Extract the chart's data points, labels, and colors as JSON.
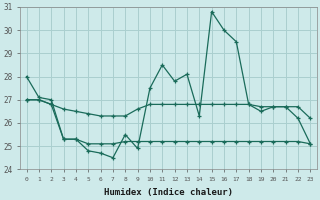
{
  "title": "",
  "xlabel": "Humidex (Indice chaleur)",
  "ylabel": "",
  "background_color": "#ceeaea",
  "grid_color": "#aacfcf",
  "line_color": "#1a6b5a",
  "x": [
    0,
    1,
    2,
    3,
    4,
    5,
    6,
    7,
    8,
    9,
    10,
    11,
    12,
    13,
    14,
    15,
    16,
    17,
    18,
    19,
    20,
    21,
    22,
    23
  ],
  "series_main": [
    28.0,
    27.1,
    27.0,
    25.3,
    25.3,
    24.8,
    24.7,
    24.5,
    25.5,
    24.9,
    27.5,
    28.5,
    27.8,
    28.1,
    26.3,
    30.8,
    30.0,
    29.5,
    26.8,
    26.5,
    26.7,
    26.7,
    26.2,
    25.1
  ],
  "series_mid": [
    27.0,
    27.0,
    26.8,
    26.6,
    26.5,
    26.4,
    26.3,
    26.3,
    26.3,
    26.6,
    26.8,
    26.8,
    26.8,
    26.8,
    26.8,
    26.8,
    26.8,
    26.8,
    26.8,
    26.7,
    26.7,
    26.7,
    26.7,
    26.2
  ],
  "series_low": [
    27.0,
    27.0,
    26.8,
    25.3,
    25.3,
    25.1,
    25.1,
    25.1,
    25.2,
    25.2,
    25.2,
    25.2,
    25.2,
    25.2,
    25.2,
    25.2,
    25.2,
    25.2,
    25.2,
    25.2,
    25.2,
    25.2,
    25.2,
    25.1
  ],
  "ylim": [
    24,
    31
  ],
  "xlim": [
    -0.5,
    23.5
  ],
  "yticks": [
    24,
    25,
    26,
    27,
    28,
    29,
    30,
    31
  ],
  "xticks": [
    0,
    1,
    2,
    3,
    4,
    5,
    6,
    7,
    8,
    9,
    10,
    11,
    12,
    13,
    14,
    15,
    16,
    17,
    18,
    19,
    20,
    21,
    22,
    23
  ]
}
